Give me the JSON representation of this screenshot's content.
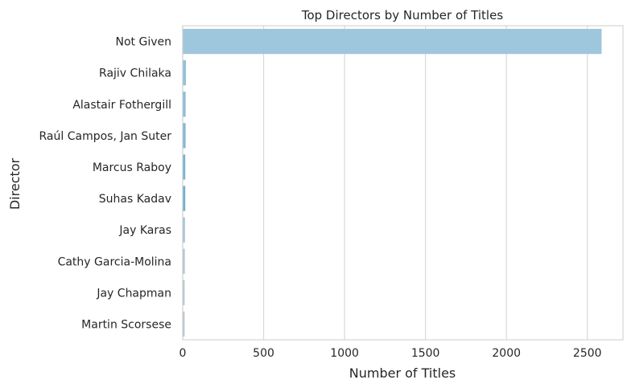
{
  "chart_data": {
    "type": "bar",
    "orientation": "horizontal",
    "title": "Top Directors by Number of Titles",
    "xlabel": "Number of Titles",
    "ylabel": "Director",
    "xlim": [
      0,
      2720
    ],
    "xticks": [
      0,
      500,
      1000,
      1500,
      2000,
      2500
    ],
    "grid": true,
    "categories": [
      "Not Given",
      "Rajiv Chilaka",
      "Alastair Fothergill",
      "Raúl Campos, Jan Suter",
      "Marcus Raboy",
      "Suhas Kadav",
      "Jay Karas",
      "Cathy Garcia-Molina",
      "Jay Chapman",
      "Martin Scorsese"
    ],
    "values": [
      2588,
      20,
      18,
      18,
      16,
      16,
      14,
      13,
      12,
      12
    ],
    "colors": [
      "#9ec6dd",
      "#95c1da",
      "#8dbdd8",
      "#84b8d6",
      "#7cb4d3",
      "#73afd1",
      "#a9c4d3",
      "#b3c6d1",
      "#b9c7d0",
      "#bec8cf"
    ]
  }
}
